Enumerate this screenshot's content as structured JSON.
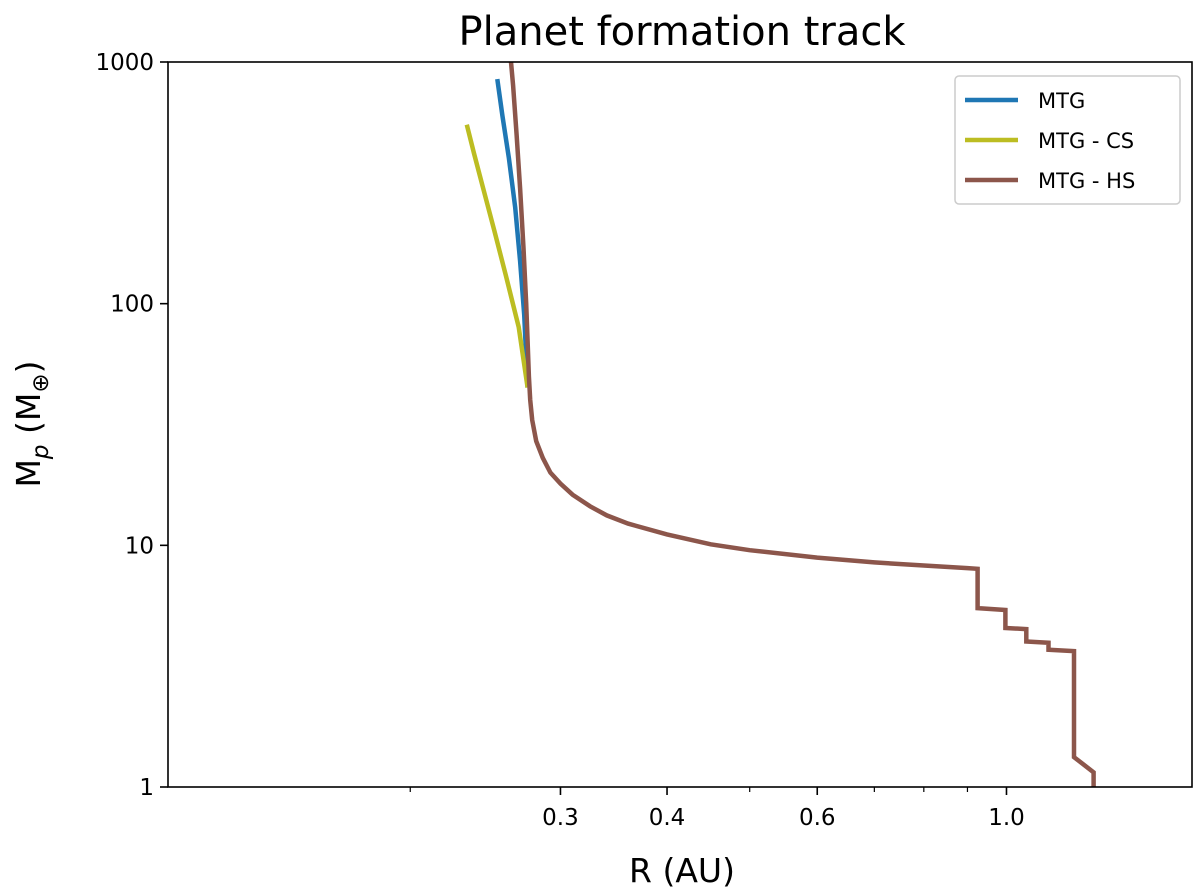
{
  "chart_data": {
    "type": "line",
    "title": "Planet formation track",
    "xlabel": "R (AU)",
    "ylabel_main": "M",
    "ylabel_sub": "p",
    "ylabel_unit_prefix": " (M",
    "ylabel_unit_sub": "⊕",
    "ylabel_unit_suffix": ")",
    "xscale": "log",
    "yscale": "log",
    "xlim": [
      0.104,
      1.65
    ],
    "ylim": [
      1,
      1000
    ],
    "grid": false,
    "legend_position": "top-right",
    "x_ticks": [
      {
        "value": 0.3,
        "label": "0.3"
      },
      {
        "value": 0.4,
        "label": "0.4"
      },
      {
        "value": 0.6,
        "label": "0.6"
      },
      {
        "value": 1.0,
        "label": "1.0"
      }
    ],
    "x_minor_ticks": [
      0.2,
      0.5,
      0.7,
      0.8,
      0.9
    ],
    "y_ticks": [
      {
        "value": 1,
        "label": "1"
      },
      {
        "value": 10,
        "label": "10"
      },
      {
        "value": 100,
        "label": "100"
      },
      {
        "value": 1000,
        "label": "1000"
      }
    ],
    "series": [
      {
        "name": "MTG",
        "color": "#1f77b4",
        "points": [
          [
            0.2745,
            45
          ],
          [
            0.272,
            90
          ],
          [
            0.269,
            150
          ],
          [
            0.2655,
            250
          ],
          [
            0.261,
            400
          ],
          [
            0.2565,
            600
          ],
          [
            0.253,
            850
          ]
        ]
      },
      {
        "name": "MTG - CS",
        "color": "#bcbd22",
        "points": [
          [
            0.2745,
            45
          ],
          [
            0.268,
            80
          ],
          [
            0.259,
            130
          ],
          [
            0.251,
            200
          ],
          [
            0.2435,
            300
          ],
          [
            0.2375,
            420
          ],
          [
            0.233,
            550
          ]
        ]
      },
      {
        "name": "MTG - HS",
        "color": "#8c564b",
        "points": [
          [
            0.2625,
            1000
          ],
          [
            0.264,
            800
          ],
          [
            0.2665,
            500
          ],
          [
            0.269,
            300
          ],
          [
            0.2715,
            170
          ],
          [
            0.2735,
            100
          ],
          [
            0.2745,
            70
          ],
          [
            0.2755,
            50
          ],
          [
            0.2765,
            40
          ],
          [
            0.278,
            33
          ],
          [
            0.281,
            27
          ],
          [
            0.286,
            23
          ],
          [
            0.292,
            20
          ],
          [
            0.3,
            18
          ],
          [
            0.31,
            16.2
          ],
          [
            0.325,
            14.5
          ],
          [
            0.34,
            13.3
          ],
          [
            0.36,
            12.3
          ],
          [
            0.4,
            11.1
          ],
          [
            0.45,
            10.1
          ],
          [
            0.5,
            9.55
          ],
          [
            0.6,
            8.9
          ],
          [
            0.7,
            8.5
          ],
          [
            0.8,
            8.25
          ],
          [
            0.9,
            8.05
          ],
          [
            0.925,
            8.0
          ],
          [
            0.925,
            5.5
          ],
          [
            0.997,
            5.4
          ],
          [
            0.997,
            4.55
          ],
          [
            1.055,
            4.5
          ],
          [
            1.055,
            4.0
          ],
          [
            1.12,
            3.95
          ],
          [
            1.12,
            3.7
          ],
          [
            1.2,
            3.65
          ],
          [
            1.2,
            1.33
          ],
          [
            1.265,
            1.15
          ],
          [
            1.265,
            1.0
          ]
        ]
      }
    ]
  }
}
